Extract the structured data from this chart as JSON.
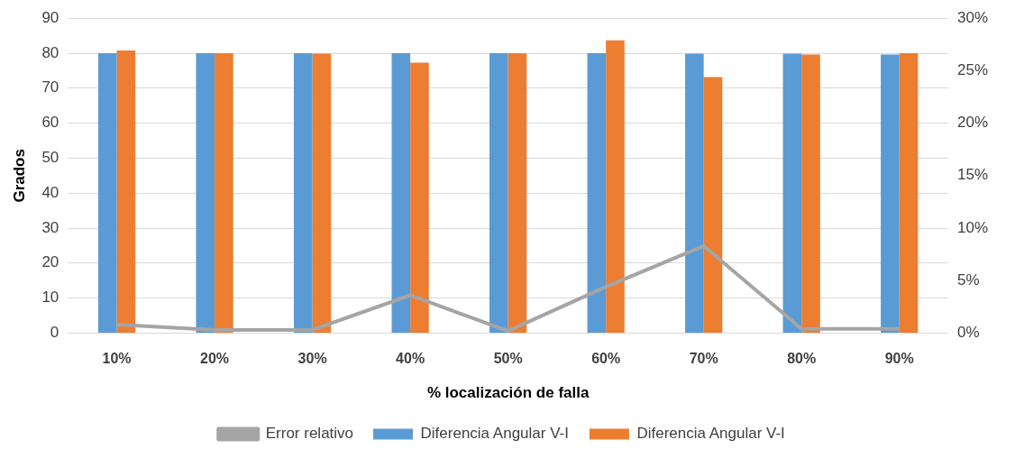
{
  "chart_data": {
    "type": "bar",
    "xlabel": "% localización de falla",
    "ylabel": "Grados",
    "categories": [
      "10%",
      "20%",
      "30%",
      "40%",
      "50%",
      "60%",
      "70%",
      "80%",
      "90%"
    ],
    "series": [
      {
        "name": "Diferencia Angular V-I",
        "color": "#5b9bd5",
        "values": [
          80,
          80,
          80,
          80,
          80,
          80,
          79.9,
          79.9,
          79.6
        ]
      },
      {
        "name": "Diferencia Angular V-I",
        "color": "#ed7d31",
        "values": [
          80.8,
          80,
          79.9,
          77.3,
          80,
          83.7,
          73.2,
          79.6,
          80
        ]
      },
      {
        "name": "Error relativo",
        "type": "line",
        "axis": "y2",
        "color": "#a5a5a5",
        "values": [
          0.8,
          0.3,
          0.3,
          3.6,
          0.2,
          4.4,
          8.3,
          0.4,
          0.4
        ]
      }
    ],
    "ylim": [
      0,
      90
    ],
    "yticks": [
      0,
      10,
      20,
      30,
      40,
      50,
      60,
      70,
      80,
      90
    ],
    "y2lim": [
      0,
      30
    ],
    "y2ticks": [
      {
        "value": 0,
        "label": "0%"
      },
      {
        "value": 5,
        "label": "5%"
      },
      {
        "value": 10,
        "label": "10%"
      },
      {
        "value": 15,
        "label": "15%"
      },
      {
        "value": 20,
        "label": "20%"
      },
      {
        "value": 25,
        "label": "25%"
      },
      {
        "value": 30,
        "label": "30%"
      }
    ],
    "grid": "y",
    "legend": "bottom",
    "marker": "none"
  }
}
